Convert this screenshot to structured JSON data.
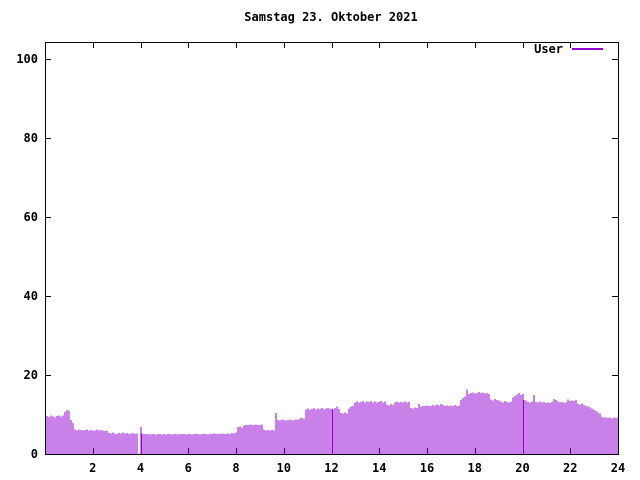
{
  "window": {
    "background": "#ffffff"
  },
  "colors": {
    "bar": "#9400D3",
    "axis": "#000000",
    "text": "#000000",
    "background": "#ffffff"
  },
  "chart_data": {
    "type": "bar",
    "title": "Samstag 23. Oktober 2021",
    "legend": {
      "label": "User",
      "position": "top-right-inside"
    },
    "series_color": "#9400D3",
    "xlabel": "",
    "ylabel": "",
    "xlim": [
      0,
      24
    ],
    "ylim": [
      0,
      104.3
    ],
    "xticks": [
      2,
      4,
      6,
      8,
      10,
      12,
      14,
      16,
      18,
      20,
      22,
      24
    ],
    "yticks": [
      0,
      20,
      40,
      60,
      80,
      100
    ],
    "grid": false,
    "interval_minutes": 5,
    "x_unit": "hour_of_day",
    "values": [
      9.6,
      9.4,
      9.7,
      9.5,
      9.3,
      9.6,
      9.8,
      9.5,
      9.7,
      10.6,
      11.2,
      10.9,
      8.6,
      7.8,
      6.2,
      6.0,
      6.2,
      6.1,
      5.9,
      6.1,
      6.2,
      6.0,
      6.1,
      5.9,
      6.0,
      6.2,
      5.9,
      6.1,
      6.0,
      5.8,
      6.0,
      5.3,
      5.2,
      5.4,
      5.2,
      5.1,
      5.3,
      5.2,
      5.4,
      5.2,
      5.3,
      5.1,
      5.2,
      5.3,
      5.1,
      5.2,
      0,
      6.8,
      5.2,
      5.1,
      5.0,
      5.0,
      4.9,
      5.1,
      5.0,
      4.8,
      5.0,
      5.1,
      4.9,
      5.0,
      4.9,
      5.1,
      5.0,
      4.9,
      5.0,
      5.1,
      4.9,
      5.0,
      5.1,
      5.0,
      4.9,
      5.0,
      5.1,
      4.9,
      5.0,
      5.0,
      5.1,
      4.9,
      5.0,
      5.1,
      5.0,
      4.9,
      5.1,
      5.0,
      5.2,
      5.0,
      5.1,
      5.0,
      5.2,
      5.1,
      5.0,
      5.2,
      5.1,
      5.3,
      5.2,
      5.4,
      6.8,
      6.9,
      6.7,
      7.2,
      7.4,
      7.3,
      7.5,
      7.4,
      7.3,
      7.5,
      7.4,
      7.3,
      7.5,
      6.2,
      6.0,
      6.1,
      5.9,
      6.1,
      6.0,
      10.4,
      8.6,
      8.5,
      8.7,
      8.6,
      8.5,
      8.6,
      8.7,
      8.5,
      8.6,
      8.7,
      8.6,
      9.0,
      9.1,
      8.9,
      11.3,
      11.5,
      11.2,
      11.4,
      11.6,
      11.3,
      11.5,
      11.4,
      11.6,
      11.3,
      11.5,
      11.6,
      11.4,
      11.5,
      11.3,
      11.6,
      12.0,
      11.4,
      10.4,
      10.2,
      10.5,
      10.3,
      11.5,
      12.0,
      12.2,
      13.1,
      13.3,
      13.0,
      13.2,
      13.4,
      13.1,
      13.3,
      13.2,
      13.4,
      13.1,
      13.3,
      13.0,
      13.2,
      13.4,
      13.1,
      13.3,
      12.5,
      12.3,
      12.6,
      12.4,
      13.1,
      13.3,
      13.0,
      13.2,
      13.1,
      13.3,
      13.0,
      13.2,
      11.7,
      11.5,
      11.8,
      11.6,
      12.6,
      12.0,
      12.2,
      12.1,
      12.3,
      12.1,
      12.2,
      12.4,
      12.2,
      12.5,
      12.3,
      12.6,
      12.4,
      12.2,
      12.3,
      12.1,
      12.3,
      12.2,
      12.4,
      12.1,
      12.3,
      13.7,
      14.2,
      14.6,
      16.3,
      15.2,
      15.4,
      15.6,
      15.3,
      15.5,
      15.7,
      15.4,
      15.6,
      15.3,
      15.5,
      15.2,
      13.8,
      13.6,
      13.9,
      13.7,
      13.5,
      13.3,
      13.1,
      13.4,
      13.2,
      13.0,
      13.3,
      14.3,
      14.7,
      15.1,
      15.4,
      14.9,
      15.2,
      13.7,
      13.5,
      13.2,
      13.0,
      13.3,
      14.9,
      13.2,
      13.1,
      13.3,
      13.0,
      13.2,
      12.9,
      13.1,
      12.9,
      13.2,
      13.9,
      13.7,
      13.3,
      13.0,
      13.2,
      12.9,
      13.1,
      13.8,
      13.4,
      13.6,
      13.4,
      13.7,
      12.7,
      12.5,
      12.8,
      12.4,
      12.2,
      12.0,
      11.8,
      11.5,
      11.2,
      10.9,
      10.5,
      10.2,
      9.4,
      9.2,
      9.3,
      9.1,
      9.3,
      9.0,
      9.2,
      9.1,
      9.3
    ]
  }
}
